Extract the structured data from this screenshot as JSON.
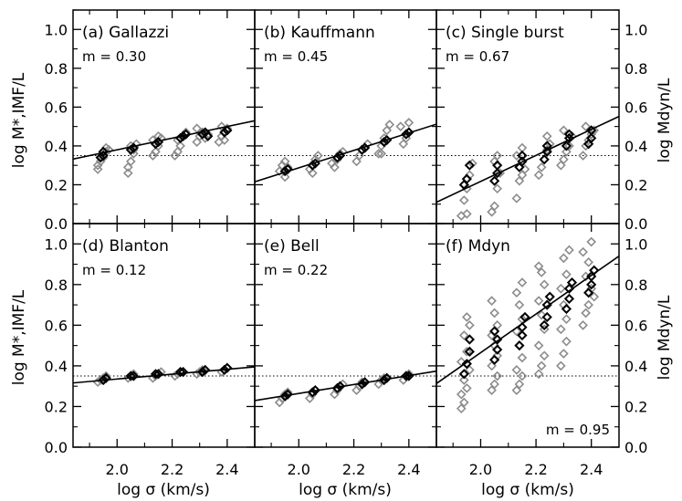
{
  "figure": {
    "x_axis_label": "log σ (km/s)",
    "left_axis_label_top": "log M*,IMF/L",
    "left_axis_label_bottom": "log M*,IMF/L",
    "right_axis_label_top": "log Mdyn/L",
    "right_axis_label_bottom": "log Mdyn/L"
  },
  "colors": {
    "gray_points": "#8c8c8c",
    "black_points": "#000000",
    "line": "#000000"
  },
  "chart_data": [
    {
      "type": "scatter",
      "panel": "a",
      "title": "(a) Gallazzi",
      "label_position": "top-left",
      "slope_label": "m = 0.30",
      "slope": 0.3,
      "reference_level": 0.35,
      "xlim": [
        1.84,
        2.5
      ],
      "ylim": [
        0,
        1.1
      ],
      "xticks": [
        2.0,
        2.2,
        2.4
      ],
      "yticks": [
        0.0,
        0.2,
        0.4,
        0.6,
        0.8,
        1.0
      ],
      "fit_line": {
        "x": [
          1.84,
          2.5
        ],
        "y": [
          0.332,
          0.53
        ]
      },
      "gray_points": [
        [
          1.93,
          0.28
        ],
        [
          1.93,
          0.3
        ],
        [
          1.94,
          0.32
        ],
        [
          1.95,
          0.34
        ],
        [
          1.96,
          0.37
        ],
        [
          1.97,
          0.38
        ],
        [
          1.96,
          0.39
        ],
        [
          2.04,
          0.29
        ],
        [
          2.05,
          0.32
        ],
        [
          2.06,
          0.36
        ],
        [
          2.06,
          0.38
        ],
        [
          2.05,
          0.4
        ],
        [
          2.07,
          0.41
        ],
        [
          2.04,
          0.26
        ],
        [
          2.13,
          0.35
        ],
        [
          2.14,
          0.37
        ],
        [
          2.15,
          0.4
        ],
        [
          2.13,
          0.43
        ],
        [
          2.15,
          0.45
        ],
        [
          2.16,
          0.44
        ],
        [
          2.21,
          0.35
        ],
        [
          2.22,
          0.37
        ],
        [
          2.23,
          0.4
        ],
        [
          2.22,
          0.43
        ],
        [
          2.24,
          0.45
        ],
        [
          2.25,
          0.47
        ],
        [
          2.29,
          0.42
        ],
        [
          2.3,
          0.45
        ],
        [
          2.32,
          0.44
        ],
        [
          2.31,
          0.47
        ],
        [
          2.29,
          0.49
        ],
        [
          2.33,
          0.46
        ],
        [
          2.37,
          0.42
        ],
        [
          2.38,
          0.45
        ],
        [
          2.39,
          0.47
        ],
        [
          2.4,
          0.49
        ],
        [
          2.38,
          0.5
        ],
        [
          2.39,
          0.43
        ]
      ],
      "black_points": [
        [
          1.94,
          0.34
        ],
        [
          1.95,
          0.35
        ],
        [
          1.95,
          0.37
        ],
        [
          2.05,
          0.38
        ],
        [
          2.06,
          0.39
        ],
        [
          2.14,
          0.41
        ],
        [
          2.15,
          0.42
        ],
        [
          2.23,
          0.44
        ],
        [
          2.24,
          0.45
        ],
        [
          2.25,
          0.46
        ],
        [
          2.31,
          0.46
        ],
        [
          2.32,
          0.47
        ],
        [
          2.33,
          0.45
        ],
        [
          2.39,
          0.47
        ],
        [
          2.4,
          0.48
        ]
      ]
    },
    {
      "type": "scatter",
      "panel": "b",
      "title": "(b) Kauffmann",
      "label_position": "top-left",
      "slope_label": "m = 0.45",
      "slope": 0.45,
      "reference_level": 0.35,
      "xlim": [
        1.84,
        2.5
      ],
      "ylim": [
        0,
        1.1
      ],
      "xticks": [
        2.0,
        2.2,
        2.4
      ],
      "yticks": [
        0.0,
        0.2,
        0.4,
        0.6,
        0.8,
        1.0
      ],
      "fit_line": {
        "x": [
          1.84,
          2.5
        ],
        "y": [
          0.215,
          0.512
        ]
      },
      "gray_points": [
        [
          1.93,
          0.27
        ],
        [
          1.94,
          0.3
        ],
        [
          1.95,
          0.32
        ],
        [
          1.96,
          0.29
        ],
        [
          1.95,
          0.24
        ],
        [
          2.04,
          0.28
        ],
        [
          2.05,
          0.3
        ],
        [
          2.06,
          0.33
        ],
        [
          2.07,
          0.35
        ],
        [
          2.05,
          0.26
        ],
        [
          2.12,
          0.31
        ],
        [
          2.14,
          0.33
        ],
        [
          2.15,
          0.36
        ],
        [
          2.16,
          0.37
        ],
        [
          2.13,
          0.29
        ],
        [
          2.21,
          0.32
        ],
        [
          2.22,
          0.35
        ],
        [
          2.23,
          0.38
        ],
        [
          2.24,
          0.39
        ],
        [
          2.25,
          0.41
        ],
        [
          2.29,
          0.36
        ],
        [
          2.3,
          0.4
        ],
        [
          2.31,
          0.44
        ],
        [
          2.32,
          0.48
        ],
        [
          2.33,
          0.51
        ],
        [
          2.3,
          0.36
        ],
        [
          2.38,
          0.41
        ],
        [
          2.39,
          0.44
        ],
        [
          2.4,
          0.47
        ],
        [
          2.37,
          0.5
        ],
        [
          2.4,
          0.52
        ]
      ],
      "black_points": [
        [
          1.95,
          0.27
        ],
        [
          1.96,
          0.28
        ],
        [
          2.05,
          0.3
        ],
        [
          2.06,
          0.31
        ],
        [
          2.14,
          0.34
        ],
        [
          2.15,
          0.35
        ],
        [
          2.23,
          0.38
        ],
        [
          2.24,
          0.39
        ],
        [
          2.31,
          0.42
        ],
        [
          2.32,
          0.43
        ],
        [
          2.39,
          0.46
        ],
        [
          2.4,
          0.47
        ]
      ]
    },
    {
      "type": "scatter",
      "panel": "c",
      "title": "(c) Single burst",
      "label_position": "top-left",
      "slope_label": "m = 0.67",
      "slope": 0.67,
      "reference_level": 0.35,
      "xlim": [
        1.84,
        2.5
      ],
      "ylim": [
        0,
        1.1
      ],
      "xticks": [
        2.0,
        2.2,
        2.4
      ],
      "yticks": [
        0.0,
        0.2,
        0.4,
        0.6,
        0.8,
        1.0
      ],
      "fit_line": {
        "x": [
          1.84,
          2.5
        ],
        "y": [
          0.11,
          0.552
        ]
      },
      "gray_points": [
        [
          1.93,
          0.04
        ],
        [
          1.94,
          0.12
        ],
        [
          1.95,
          0.18
        ],
        [
          1.96,
          0.25
        ],
        [
          1.97,
          0.31
        ],
        [
          1.95,
          0.05
        ],
        [
          2.04,
          0.06
        ],
        [
          2.05,
          0.09
        ],
        [
          2.06,
          0.18
        ],
        [
          2.07,
          0.26
        ],
        [
          2.05,
          0.32
        ],
        [
          2.06,
          0.35
        ],
        [
          2.13,
          0.13
        ],
        [
          2.14,
          0.22
        ],
        [
          2.15,
          0.25
        ],
        [
          2.16,
          0.28
        ],
        [
          2.13,
          0.35
        ],
        [
          2.15,
          0.39
        ],
        [
          2.21,
          0.25
        ],
        [
          2.22,
          0.29
        ],
        [
          2.23,
          0.33
        ],
        [
          2.24,
          0.38
        ],
        [
          2.25,
          0.41
        ],
        [
          2.24,
          0.45
        ],
        [
          2.29,
          0.3
        ],
        [
          2.3,
          0.33
        ],
        [
          2.31,
          0.37
        ],
        [
          2.32,
          0.4
        ],
        [
          2.33,
          0.45
        ],
        [
          2.3,
          0.48
        ],
        [
          2.37,
          0.35
        ],
        [
          2.38,
          0.4
        ],
        [
          2.39,
          0.43
        ],
        [
          2.4,
          0.46
        ],
        [
          2.41,
          0.48
        ],
        [
          2.38,
          0.5
        ]
      ],
      "black_points": [
        [
          1.94,
          0.2
        ],
        [
          1.95,
          0.23
        ],
        [
          1.96,
          0.3
        ],
        [
          2.05,
          0.22
        ],
        [
          2.06,
          0.26
        ],
        [
          2.06,
          0.3
        ],
        [
          2.14,
          0.29
        ],
        [
          2.15,
          0.32
        ],
        [
          2.15,
          0.35
        ],
        [
          2.23,
          0.33
        ],
        [
          2.24,
          0.37
        ],
        [
          2.24,
          0.4
        ],
        [
          2.31,
          0.4
        ],
        [
          2.32,
          0.44
        ],
        [
          2.32,
          0.46
        ],
        [
          2.39,
          0.41
        ],
        [
          2.4,
          0.44
        ],
        [
          2.4,
          0.48
        ]
      ]
    },
    {
      "type": "scatter",
      "panel": "d",
      "title": "(d) Blanton",
      "label_position": "top-left",
      "slope_label": "m = 0.12",
      "slope": 0.12,
      "reference_level": 0.35,
      "xlim": [
        1.84,
        2.5
      ],
      "ylim": [
        0,
        1.1
      ],
      "xticks": [
        2.0,
        2.2,
        2.4
      ],
      "yticks": [
        0.0,
        0.2,
        0.4,
        0.6,
        0.8,
        1.0
      ],
      "fit_line": {
        "x": [
          1.84,
          2.5
        ],
        "y": [
          0.316,
          0.395
        ]
      },
      "gray_points": [
        [
          1.93,
          0.32
        ],
        [
          1.94,
          0.33
        ],
        [
          1.95,
          0.34
        ],
        [
          1.96,
          0.35
        ],
        [
          2.04,
          0.34
        ],
        [
          2.05,
          0.35
        ],
        [
          2.06,
          0.36
        ],
        [
          2.13,
          0.34
        ],
        [
          2.14,
          0.35
        ],
        [
          2.15,
          0.36
        ],
        [
          2.16,
          0.37
        ],
        [
          2.21,
          0.35
        ],
        [
          2.22,
          0.36
        ],
        [
          2.23,
          0.37
        ],
        [
          2.29,
          0.36
        ],
        [
          2.3,
          0.37
        ],
        [
          2.31,
          0.38
        ],
        [
          2.38,
          0.37
        ],
        [
          2.39,
          0.38
        ],
        [
          2.4,
          0.39
        ]
      ],
      "black_points": [
        [
          1.95,
          0.33
        ],
        [
          1.96,
          0.34
        ],
        [
          2.05,
          0.35
        ],
        [
          2.06,
          0.35
        ],
        [
          2.14,
          0.36
        ],
        [
          2.15,
          0.36
        ],
        [
          2.23,
          0.37
        ],
        [
          2.24,
          0.37
        ],
        [
          2.31,
          0.37
        ],
        [
          2.32,
          0.38
        ],
        [
          2.39,
          0.38
        ],
        [
          2.4,
          0.39
        ]
      ]
    },
    {
      "type": "scatter",
      "panel": "e",
      "title": "(e) Bell",
      "label_position": "top-left",
      "slope_label": "m = 0.22",
      "slope": 0.22,
      "reference_level": 0.35,
      "xlim": [
        1.84,
        2.5
      ],
      "ylim": [
        0,
        1.1
      ],
      "xticks": [
        2.0,
        2.2,
        2.4
      ],
      "yticks": [
        0.0,
        0.2,
        0.4,
        0.6,
        0.8,
        1.0
      ],
      "fit_line": {
        "x": [
          1.84,
          2.5
        ],
        "y": [
          0.229,
          0.374
        ]
      },
      "gray_points": [
        [
          1.93,
          0.22
        ],
        [
          1.94,
          0.24
        ],
        [
          1.95,
          0.26
        ],
        [
          1.96,
          0.27
        ],
        [
          2.04,
          0.24
        ],
        [
          2.05,
          0.26
        ],
        [
          2.06,
          0.28
        ],
        [
          2.13,
          0.26
        ],
        [
          2.14,
          0.28
        ],
        [
          2.15,
          0.3
        ],
        [
          2.16,
          0.31
        ],
        [
          2.21,
          0.28
        ],
        [
          2.22,
          0.3
        ],
        [
          2.23,
          0.32
        ],
        [
          2.29,
          0.31
        ],
        [
          2.3,
          0.33
        ],
        [
          2.31,
          0.34
        ],
        [
          2.38,
          0.33
        ],
        [
          2.39,
          0.35
        ],
        [
          2.4,
          0.36
        ]
      ],
      "black_points": [
        [
          1.95,
          0.25
        ],
        [
          1.96,
          0.26
        ],
        [
          2.05,
          0.27
        ],
        [
          2.06,
          0.28
        ],
        [
          2.14,
          0.29
        ],
        [
          2.15,
          0.3
        ],
        [
          2.23,
          0.31
        ],
        [
          2.24,
          0.32
        ],
        [
          2.31,
          0.33
        ],
        [
          2.32,
          0.34
        ],
        [
          2.39,
          0.35
        ],
        [
          2.4,
          0.35
        ]
      ]
    },
    {
      "type": "scatter",
      "panel": "f",
      "title": "(f) Mdyn",
      "label_position": "top-left",
      "slope_label": "m = 0.95",
      "slope": 0.95,
      "slope_label_position": "bottom-right",
      "reference_level": 0.35,
      "xlim": [
        1.84,
        2.5
      ],
      "ylim": [
        0,
        1.1
      ],
      "xticks": [
        2.0,
        2.2,
        2.4
      ],
      "yticks": [
        0.0,
        0.2,
        0.4,
        0.6,
        0.8,
        1.0
      ],
      "fit_line": {
        "x": [
          1.84,
          2.5
        ],
        "y": [
          0.313,
          0.94
        ]
      },
      "gray_points": [
        [
          1.93,
          0.19
        ],
        [
          1.94,
          0.22
        ],
        [
          1.93,
          0.26
        ],
        [
          1.95,
          0.29
        ],
        [
          1.94,
          0.33
        ],
        [
          1.96,
          0.38
        ],
        [
          1.93,
          0.42
        ],
        [
          1.95,
          0.47
        ],
        [
          1.94,
          0.55
        ],
        [
          1.96,
          0.6
        ],
        [
          1.95,
          0.64
        ],
        [
          2.04,
          0.28
        ],
        [
          2.05,
          0.31
        ],
        [
          2.06,
          0.35
        ],
        [
          2.04,
          0.4
        ],
        [
          2.06,
          0.45
        ],
        [
          2.05,
          0.5
        ],
        [
          2.04,
          0.55
        ],
        [
          2.06,
          0.6
        ],
        [
          2.05,
          0.66
        ],
        [
          2.04,
          0.72
        ],
        [
          2.13,
          0.28
        ],
        [
          2.14,
          0.31
        ],
        [
          2.15,
          0.35
        ],
        [
          2.13,
          0.38
        ],
        [
          2.15,
          0.44
        ],
        [
          2.14,
          0.5
        ],
        [
          2.13,
          0.57
        ],
        [
          2.15,
          0.63
        ],
        [
          2.14,
          0.7
        ],
        [
          2.13,
          0.76
        ],
        [
          2.15,
          0.81
        ],
        [
          2.21,
          0.36
        ],
        [
          2.22,
          0.4
        ],
        [
          2.23,
          0.45
        ],
        [
          2.21,
          0.5
        ],
        [
          2.23,
          0.58
        ],
        [
          2.22,
          0.65
        ],
        [
          2.21,
          0.72
        ],
        [
          2.23,
          0.8
        ],
        [
          2.22,
          0.86
        ],
        [
          2.21,
          0.89
        ],
        [
          2.29,
          0.4
        ],
        [
          2.3,
          0.46
        ],
        [
          2.31,
          0.52
        ],
        [
          2.29,
          0.58
        ],
        [
          2.31,
          0.63
        ],
        [
          2.3,
          0.7
        ],
        [
          2.29,
          0.78
        ],
        [
          2.31,
          0.85
        ],
        [
          2.3,
          0.93
        ],
        [
          2.32,
          0.97
        ],
        [
          2.37,
          0.6
        ],
        [
          2.38,
          0.66
        ],
        [
          2.39,
          0.7
        ],
        [
          2.4,
          0.78
        ],
        [
          2.38,
          0.84
        ],
        [
          2.39,
          0.91
        ],
        [
          2.37,
          0.96
        ],
        [
          2.4,
          1.01
        ],
        [
          2.41,
          0.74
        ]
      ],
      "black_points": [
        [
          1.94,
          0.36
        ],
        [
          1.95,
          0.41
        ],
        [
          1.96,
          0.47
        ],
        [
          1.96,
          0.53
        ],
        [
          2.05,
          0.43
        ],
        [
          2.06,
          0.48
        ],
        [
          2.06,
          0.53
        ],
        [
          2.05,
          0.57
        ],
        [
          2.14,
          0.5
        ],
        [
          2.15,
          0.55
        ],
        [
          2.15,
          0.59
        ],
        [
          2.16,
          0.64
        ],
        [
          2.23,
          0.6
        ],
        [
          2.24,
          0.64
        ],
        [
          2.24,
          0.7
        ],
        [
          2.25,
          0.74
        ],
        [
          2.31,
          0.68
        ],
        [
          2.32,
          0.73
        ],
        [
          2.32,
          0.78
        ],
        [
          2.33,
          0.81
        ],
        [
          2.39,
          0.76
        ],
        [
          2.4,
          0.8
        ],
        [
          2.4,
          0.84
        ],
        [
          2.41,
          0.87
        ]
      ]
    }
  ]
}
